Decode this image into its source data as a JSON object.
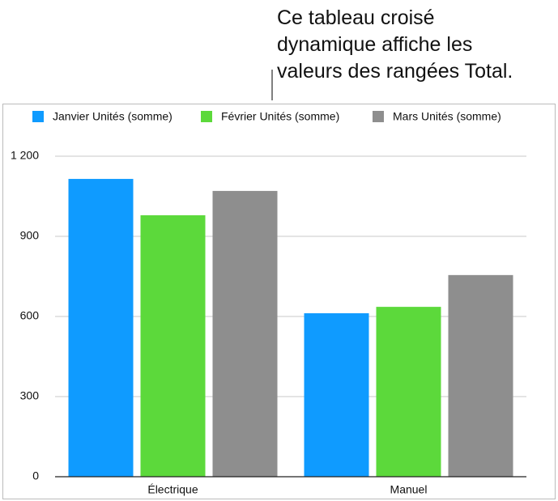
{
  "chart_data": {
    "type": "bar",
    "annotation": [
      "Ce tableau croisé",
      "dynamique affiche les",
      "valeurs des rangées Total."
    ],
    "categories": [
      "Électrique",
      "Manuel"
    ],
    "series": [
      {
        "name": "Janvier Unités (somme)",
        "color": "#0f9bff",
        "values": [
          1115,
          612
        ]
      },
      {
        "name": "Février Unités (somme)",
        "color": "#5cd93b",
        "values": [
          979,
          636
        ]
      },
      {
        "name": "Mars Unités (somme)",
        "color": "#8e8e8e",
        "values": [
          1070,
          755
        ]
      }
    ],
    "ylim": [
      0,
      1200
    ],
    "yticks": [
      0,
      300,
      600,
      900,
      {
        "value": 1200,
        "label": "1 200"
      }
    ],
    "grid": true,
    "legend": "top"
  }
}
